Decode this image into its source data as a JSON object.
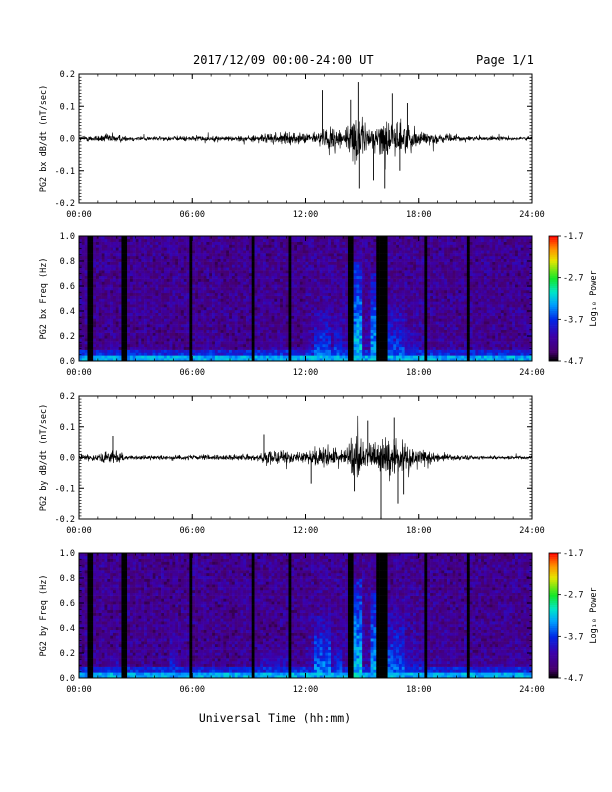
{
  "header": {
    "title": "2017/12/09  00:00-24:00 UT",
    "page": "Page 1/1"
  },
  "xlabel": "Universal Time (hh:mm)",
  "chart_data": [
    {
      "type": "line",
      "ylabel": "PG2 bx dB/dt (nT/sec)",
      "xlim": [
        0,
        24
      ],
      "ylim": [
        -0.2,
        0.2
      ],
      "x_ticks": [
        "00:00",
        "06:00",
        "12:00",
        "18:00",
        "24:00"
      ],
      "y_ticks": [
        "0.2",
        "0.1",
        "0.0",
        "-0.1",
        "-0.2"
      ],
      "y_tick_values": [
        0.2,
        0.1,
        0.0,
        -0.1,
        -0.2
      ],
      "color": "#000000",
      "amplitude_envelope": {
        "hours": [
          0,
          1,
          1.8,
          2.5,
          4,
          6,
          8,
          9.5,
          10.5,
          11.5,
          12.2,
          13,
          13.5,
          14,
          14.5,
          14.8,
          15.2,
          15.7,
          16.2,
          16.5,
          17,
          17.5,
          18,
          19,
          21,
          24
        ],
        "amplitude": [
          0.015,
          0.02,
          0.03,
          0.015,
          0.012,
          0.015,
          0.015,
          0.02,
          0.035,
          0.03,
          0.03,
          0.05,
          0.08,
          0.06,
          0.1,
          0.15,
          0.08,
          0.06,
          0.13,
          0.09,
          0.1,
          0.07,
          0.05,
          0.025,
          0.012,
          0.01
        ]
      },
      "spikes": [
        {
          "x": 12.9,
          "y": 0.15
        },
        {
          "x": 14.4,
          "y": 0.12
        },
        {
          "x": 14.8,
          "y": 0.175
        },
        {
          "x": 14.85,
          "y": -0.155
        },
        {
          "x": 15.6,
          "y": -0.13
        },
        {
          "x": 16.2,
          "y": -0.155
        },
        {
          "x": 16.6,
          "y": 0.14
        },
        {
          "x": 17.0,
          "y": -0.1
        },
        {
          "x": 17.4,
          "y": 0.11
        }
      ]
    },
    {
      "type": "heatmap",
      "ylabel": "PG2 bx Freq (Hz)",
      "xlim": [
        0,
        24
      ],
      "ylim": [
        0,
        1.0
      ],
      "x_ticks": [
        "00:00",
        "06:00",
        "12:00",
        "18:00",
        "24:00"
      ],
      "y_ticks": [
        "1.0",
        "0.8",
        "0.6",
        "0.4",
        "0.2",
        "0.0"
      ],
      "y_tick_values": [
        1.0,
        0.8,
        0.6,
        0.4,
        0.2,
        0.0
      ],
      "colorbar": {
        "label": "Log₁₀ Power",
        "min": -4.7,
        "max": -1.7,
        "ticks": [
          "-1.7",
          "-2.7",
          "-3.7",
          "-4.7"
        ],
        "tick_values": [
          -1.7,
          -2.7,
          -3.7,
          -4.7
        ]
      },
      "dark_columns": [
        0.6,
        2.4,
        5.9,
        9.2,
        11.2,
        14.4,
        15.9,
        16.1,
        16.3,
        18.4,
        20.6
      ],
      "bursts": [
        {
          "x": 12.9,
          "w": 0.8,
          "top": 0.42,
          "intensity": -3.7
        },
        {
          "x": 13.7,
          "w": 0.5,
          "top": 0.38,
          "intensity": -3.8
        },
        {
          "x": 14.7,
          "w": 0.7,
          "top": 0.8,
          "intensity": -3.4
        },
        {
          "x": 15.8,
          "w": 0.6,
          "top": 0.7,
          "intensity": -3.5
        },
        {
          "x": 16.8,
          "w": 0.9,
          "top": 0.55,
          "intensity": -3.8
        },
        {
          "x": 17.6,
          "w": 0.8,
          "top": 0.35,
          "intensity": -4.0
        },
        {
          "x": 1.8,
          "w": 0.6,
          "top": 0.2,
          "intensity": -4.0
        },
        {
          "x": 10.3,
          "w": 1.0,
          "top": 0.2,
          "intensity": -4.0
        }
      ]
    },
    {
      "type": "line",
      "ylabel": "PG2 by dB/dt (nT/sec)",
      "xlim": [
        0,
        24
      ],
      "ylim": [
        -0.2,
        0.2
      ],
      "x_ticks": [
        "00:00",
        "06:00",
        "12:00",
        "18:00",
        "24:00"
      ],
      "y_ticks": [
        "0.2",
        "0.1",
        "0.0",
        "-0.1",
        "-0.2"
      ],
      "y_tick_values": [
        0.2,
        0.1,
        0.0,
        -0.1,
        -0.2
      ],
      "color": "#000000",
      "amplitude_envelope": {
        "hours": [
          0,
          1,
          1.8,
          2.5,
          4,
          6,
          8,
          9.5,
          10,
          10.5,
          11.5,
          12.2,
          13,
          13.5,
          14,
          14.5,
          14.8,
          15.2,
          15.7,
          16.2,
          16.5,
          17,
          17.5,
          18,
          19,
          21,
          24
        ],
        "amplitude": [
          0.015,
          0.02,
          0.045,
          0.015,
          0.012,
          0.015,
          0.015,
          0.02,
          0.05,
          0.04,
          0.03,
          0.04,
          0.06,
          0.07,
          0.05,
          0.09,
          0.12,
          0.09,
          0.08,
          0.13,
          0.1,
          0.1,
          0.07,
          0.05,
          0.025,
          0.012,
          0.01
        ]
      },
      "spikes": [
        {
          "x": 1.8,
          "y": 0.07
        },
        {
          "x": 9.8,
          "y": 0.075
        },
        {
          "x": 12.3,
          "y": -0.085
        },
        {
          "x": 14.6,
          "y": -0.11
        },
        {
          "x": 15.3,
          "y": 0.12
        },
        {
          "x": 16.0,
          "y": -0.205
        },
        {
          "x": 16.7,
          "y": 0.13
        },
        {
          "x": 16.9,
          "y": -0.15
        },
        {
          "x": 17.2,
          "y": -0.12
        }
      ]
    },
    {
      "type": "heatmap",
      "ylabel": "PG2 by Freq (Hz)",
      "xlim": [
        0,
        24
      ],
      "ylim": [
        0,
        1.0
      ],
      "x_ticks": [
        "00:00",
        "06:00",
        "12:00",
        "18:00",
        "24:00"
      ],
      "y_ticks": [
        "1.0",
        "0.8",
        "0.6",
        "0.4",
        "0.2",
        "0.0"
      ],
      "y_tick_values": [
        1.0,
        0.8,
        0.6,
        0.4,
        0.2,
        0.0
      ],
      "colorbar": {
        "label": "Log₁₀ Power",
        "min": -4.7,
        "max": -1.7,
        "ticks": [
          "-1.7",
          "-2.7",
          "-3.7",
          "-4.7"
        ],
        "tick_values": [
          -1.7,
          -2.7,
          -3.7,
          -4.7
        ]
      },
      "dark_columns": [
        0.6,
        2.4,
        5.9,
        9.2,
        11.2,
        14.4,
        15.9,
        16.1,
        16.3,
        18.4,
        20.6
      ],
      "bursts": [
        {
          "x": 12.9,
          "w": 0.8,
          "top": 0.5,
          "intensity": -3.6
        },
        {
          "x": 13.7,
          "w": 0.5,
          "top": 0.35,
          "intensity": -3.8
        },
        {
          "x": 14.7,
          "w": 0.7,
          "top": 0.8,
          "intensity": -3.4
        },
        {
          "x": 15.8,
          "w": 0.6,
          "top": 0.7,
          "intensity": -3.5
        },
        {
          "x": 16.8,
          "w": 0.9,
          "top": 0.55,
          "intensity": -3.7
        },
        {
          "x": 17.6,
          "w": 0.8,
          "top": 0.35,
          "intensity": -4.0
        },
        {
          "x": 1.8,
          "w": 0.6,
          "top": 0.22,
          "intensity": -3.9
        },
        {
          "x": 10.3,
          "w": 1.5,
          "top": 0.25,
          "intensity": -3.9
        },
        {
          "x": 5.0,
          "w": 0.5,
          "top": 0.47,
          "intensity": -3.9
        }
      ]
    }
  ]
}
